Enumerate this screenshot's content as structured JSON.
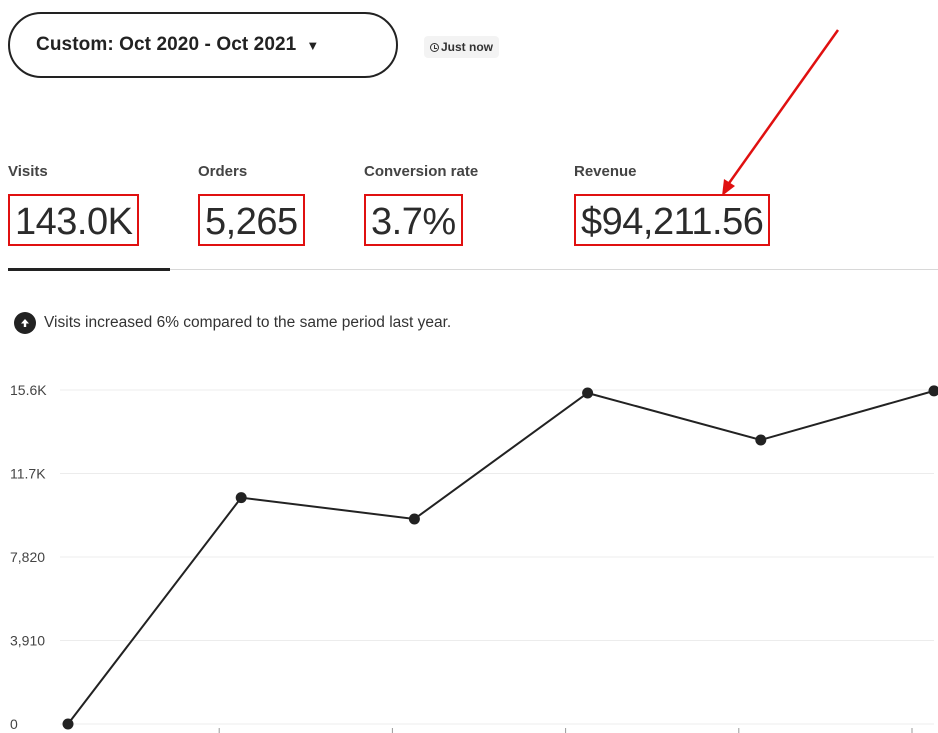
{
  "header": {
    "date_range_label": "Custom: Oct 2020 - Oct 2021",
    "updated_label": "Just now"
  },
  "stats": [
    {
      "label": "Visits",
      "value": "143.0K"
    },
    {
      "label": "Orders",
      "value": "5,265"
    },
    {
      "label": "Conversion rate",
      "value": "3.7%"
    },
    {
      "label": "Revenue",
      "value": "$94,211.56"
    }
  ],
  "message": {
    "text": "Visits increased 6% compared to the same period last year."
  },
  "colors": {
    "highlight": "#e01010",
    "line": "#222222",
    "grid": "#ececec"
  },
  "icons": {
    "caret": "caret-down-icon",
    "clock": "clock-icon",
    "trend": "arrow-up-circle-icon",
    "annotation": "red-arrow-annotation"
  },
  "chart_data": {
    "type": "line",
    "series": [
      {
        "values": [
          0,
          10600,
          9600,
          15500,
          13300,
          15600
        ]
      }
    ],
    "yticks": [
      "0",
      "3,910",
      "7,820",
      "11.7K",
      "15.6K"
    ],
    "ylim": [
      0,
      15640
    ],
    "grid": true
  }
}
